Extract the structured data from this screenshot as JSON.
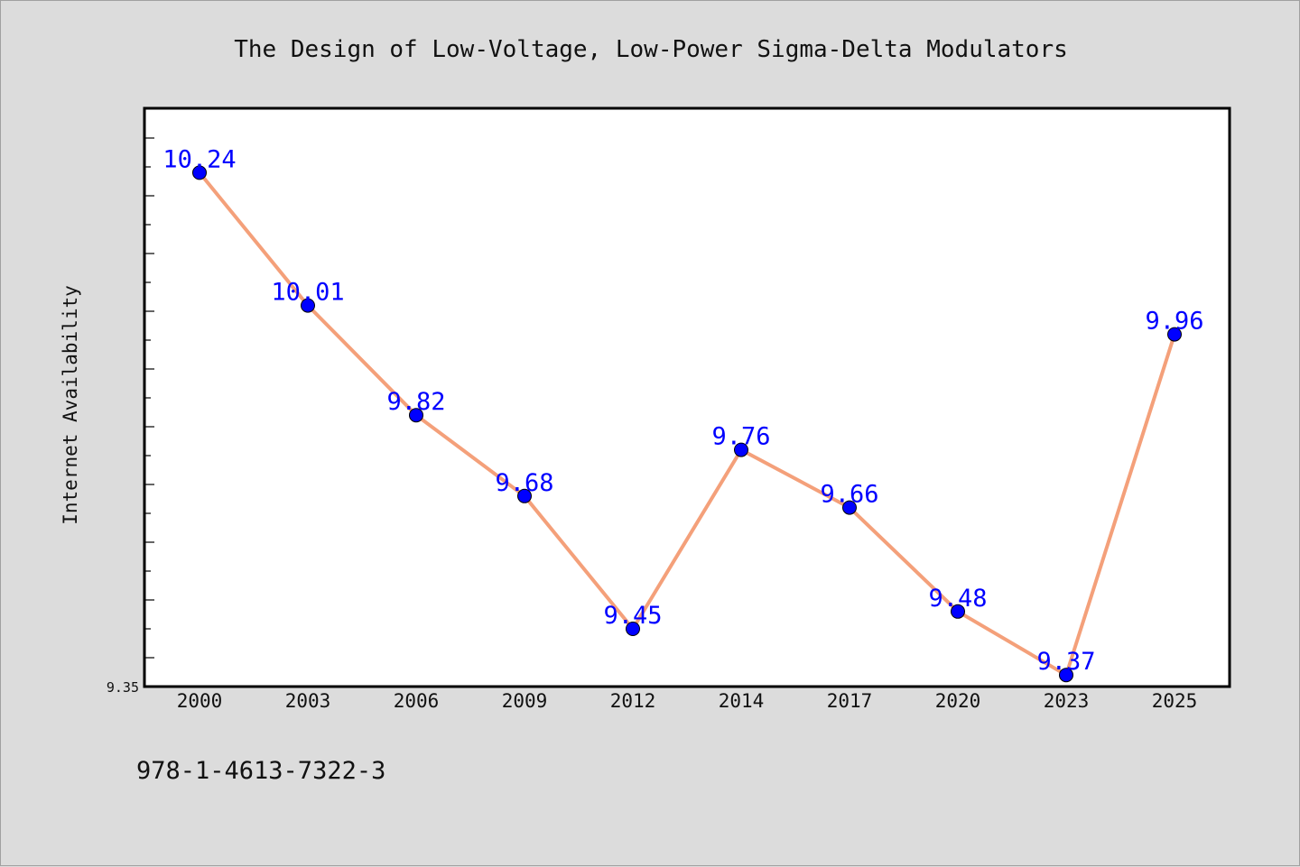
{
  "chart_data": {
    "type": "line",
    "title": "The Design of Low-Voltage, Low-Power Sigma-Delta Modulators",
    "xlabel": "",
    "ylabel": "Internet Availability",
    "categories": [
      "2000",
      "2003",
      "2006",
      "2009",
      "2012",
      "2014",
      "2017",
      "2020",
      "2023",
      "2025"
    ],
    "series": [
      {
        "values": [
          10.24,
          10.01,
          9.82,
          9.68,
          9.45,
          9.76,
          9.66,
          9.48,
          9.37,
          9.96
        ]
      }
    ],
    "data_labels": [
      "10.24",
      "10.01",
      "9.82",
      "9.68",
      "9.45",
      "9.76",
      "9.66",
      "9.48",
      "9.37",
      "9.96"
    ],
    "ytick_labels": [
      "9.35"
    ],
    "ylim": [
      9.35,
      10.35
    ],
    "grid": false,
    "line_color": "#f4a07a",
    "marker_color": "#0000ff",
    "label_color": "#0000ff"
  },
  "footer": {
    "isbn": "978-1-4613-7322-3"
  }
}
